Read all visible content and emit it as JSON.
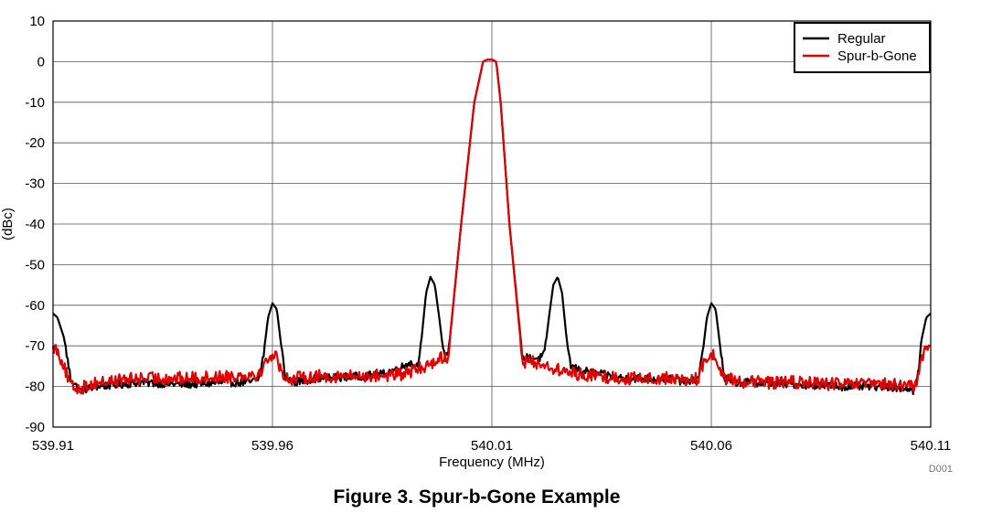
{
  "chart_data": {
    "type": "line",
    "title": "",
    "xlabel": "Frequency (MHz)",
    "ylabel": "(dBc)",
    "xlim": [
      539.91,
      540.11
    ],
    "ylim": [
      -90,
      10
    ],
    "x_ticks": [
      "539.91",
      "539.96",
      "540.01",
      "540.06",
      "540.11"
    ],
    "y_ticks": [
      "10",
      "0",
      "-10",
      "-20",
      "-30",
      "-40",
      "-50",
      "-60",
      "-70",
      "-80",
      "-90"
    ],
    "grid": true,
    "legend_position": "top-right",
    "watermark": "D001",
    "series": [
      {
        "name": "Regular",
        "color": "#000000",
        "x": [
          539.91,
          539.911,
          539.9125,
          539.914,
          539.916,
          539.92,
          539.93,
          539.94,
          539.95,
          539.955,
          539.957,
          539.958,
          539.959,
          539.96,
          539.961,
          539.962,
          539.963,
          539.965,
          539.97,
          539.98,
          539.985,
          539.99,
          539.991,
          539.993,
          539.994,
          539.995,
          539.996,
          539.997,
          539.998,
          539.999,
          540.0,
          540.003,
          540.006,
          540.008,
          540.009,
          540.01,
          540.011,
          540.012,
          540.014,
          540.017,
          540.021,
          540.022,
          540.023,
          540.024,
          540.025,
          540.026,
          540.027,
          540.028,
          540.03,
          540.035,
          540.04,
          540.05,
          540.055,
          540.057,
          540.058,
          540.059,
          540.06,
          540.061,
          540.062,
          540.063,
          540.065,
          540.07,
          540.08,
          540.09,
          540.1,
          540.105,
          540.106,
          540.107,
          540.108,
          540.109,
          540.11
        ],
        "y": [
          -62,
          -63,
          -68,
          -78,
          -81,
          -80,
          -79,
          -79.5,
          -79,
          -79,
          -78,
          -72,
          -63,
          -59.5,
          -61,
          -70,
          -78,
          -79,
          -78,
          -77.5,
          -77,
          -75,
          -74,
          -75,
          -68,
          -57,
          -53,
          -55,
          -63,
          -72,
          -73,
          -40,
          -10,
          0,
          0.5,
          0.5,
          0,
          -10,
          -40,
          -73,
          -73,
          -72,
          -63,
          -55,
          -53,
          -57,
          -68,
          -75,
          -76,
          -77,
          -78,
          -78,
          -79,
          -78,
          -72,
          -63,
          -59.5,
          -61,
          -70,
          -78,
          -79,
          -79,
          -79.5,
          -80,
          -80,
          -80.5,
          -81,
          -78,
          -68,
          -63,
          -62
        ]
      },
      {
        "name": "Spur-b-Gone",
        "color": "#e00000",
        "x": [
          539.91,
          539.911,
          539.9125,
          539.914,
          539.916,
          539.92,
          539.93,
          539.94,
          539.95,
          539.955,
          539.957,
          539.958,
          539.959,
          539.96,
          539.961,
          539.962,
          539.963,
          539.965,
          539.97,
          539.98,
          539.99,
          539.995,
          539.998,
          540.0,
          540.003,
          540.006,
          540.008,
          540.009,
          540.01,
          540.011,
          540.012,
          540.014,
          540.017,
          540.02,
          540.025,
          540.03,
          540.04,
          540.05,
          540.055,
          540.057,
          540.058,
          540.059,
          540.06,
          540.061,
          540.062,
          540.063,
          540.065,
          540.07,
          540.08,
          540.09,
          540.1,
          540.105,
          540.106,
          540.107,
          540.108,
          540.109,
          540.11
        ],
        "y": [
          -70,
          -71,
          -75,
          -80,
          -80.5,
          -79,
          -78,
          -78,
          -77.5,
          -77,
          -77,
          -75,
          -73,
          -72,
          -73,
          -76,
          -78,
          -78,
          -77.5,
          -77.5,
          -77,
          -75,
          -73,
          -73,
          -40,
          -10,
          0,
          0.5,
          0.5,
          0,
          -10,
          -40,
          -74,
          -74,
          -76,
          -77,
          -78,
          -78,
          -78.5,
          -78,
          -75,
          -73,
          -72,
          -73,
          -76,
          -78,
          -78.5,
          -79,
          -79,
          -79.5,
          -79.5,
          -80,
          -80,
          -78,
          -73,
          -70.5,
          -70
        ]
      }
    ]
  },
  "caption": "Figure 3. Spur-b-Gone Example"
}
